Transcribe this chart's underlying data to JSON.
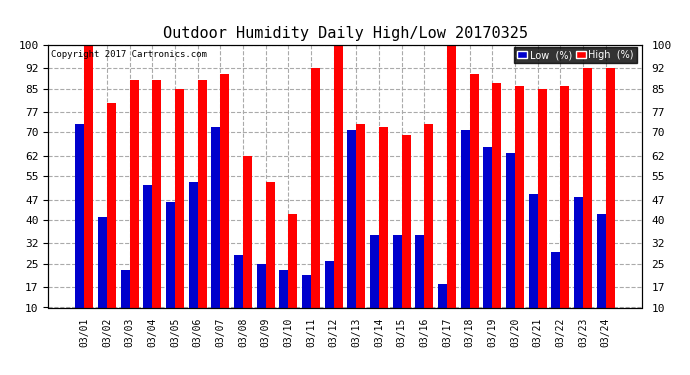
{
  "title": "Outdoor Humidity Daily High/Low 20170325",
  "copyright": "Copyright 2017 Cartronics.com",
  "dates": [
    "03/01",
    "03/02",
    "03/03",
    "03/04",
    "03/05",
    "03/06",
    "03/07",
    "03/08",
    "03/09",
    "03/10",
    "03/11",
    "03/12",
    "03/13",
    "03/14",
    "03/15",
    "03/16",
    "03/17",
    "03/18",
    "03/19",
    "03/20",
    "03/21",
    "03/22",
    "03/23",
    "03/24"
  ],
  "high": [
    100,
    80,
    88,
    88,
    85,
    88,
    90,
    62,
    53,
    42,
    92,
    100,
    73,
    72,
    69,
    73,
    100,
    90,
    87,
    86,
    85,
    86,
    92,
    92
  ],
  "low": [
    73,
    41,
    23,
    52,
    46,
    53,
    72,
    28,
    25,
    23,
    21,
    26,
    71,
    35,
    35,
    35,
    18,
    71,
    65,
    63,
    49,
    29,
    48,
    42
  ],
  "high_color": "#ff0000",
  "low_color": "#0000cc",
  "background_color": "#ffffff",
  "grid_color": "#aaaaaa",
  "ylim": [
    10,
    100
  ],
  "yticks": [
    10,
    17,
    25,
    32,
    40,
    47,
    55,
    62,
    70,
    77,
    85,
    92,
    100
  ],
  "bar_width": 0.4,
  "legend_low_label": "Low  (%)",
  "legend_high_label": "High  (%)"
}
